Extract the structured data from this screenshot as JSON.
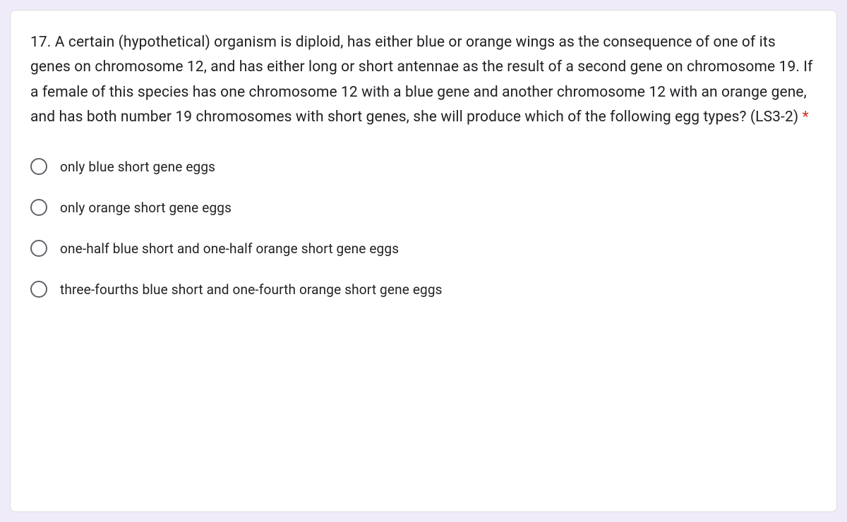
{
  "card": {
    "background_color": "#ffffff",
    "border_color": "#dadce0",
    "border_radius": 8
  },
  "page": {
    "background_color": "#f0ebf8"
  },
  "question": {
    "text": "17. A certain (hypothetical) organism is diploid, has either blue or orange wings as the consequence of one of its genes on chromosome 12, and has either long or short antennae as the result of a second gene on chromosome 19. If a female of this species has one chromosome 12 with a blue gene and another chromosome 12 with an orange gene, and has both number 19 chromosomes with short genes, she will produce which of the following egg types? (LS3-2)",
    "required_marker": " *",
    "text_color": "#202124",
    "fontsize": 21,
    "required_color": "#d93025"
  },
  "options": [
    {
      "label": "only blue short gene eggs",
      "selected": false
    },
    {
      "label": "only orange short gene eggs",
      "selected": false
    },
    {
      "label": "one-half blue short and one-half orange short gene eggs",
      "selected": false
    },
    {
      "label": "three-fourths blue short and one-fourth orange short gene eggs",
      "selected": false
    }
  ],
  "radio": {
    "border_color": "#5f6368",
    "size": 24
  },
  "option_label": {
    "fontsize": 19,
    "color": "#202124"
  }
}
